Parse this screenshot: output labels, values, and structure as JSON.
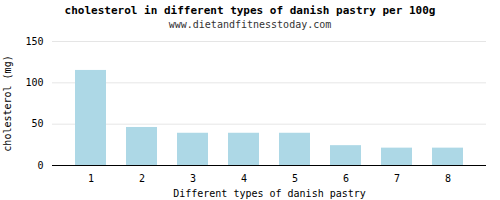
{
  "chart_data": {
    "type": "bar",
    "title": "cholesterol in different types of danish pastry per 100g",
    "subtitle": "www.dietandfitnesstoday.com",
    "xlabel": "Different types of danish pastry",
    "ylabel": "cholesterol (mg)",
    "categories": [
      1,
      2,
      3,
      4,
      5,
      6,
      7,
      8
    ],
    "values": [
      115,
      46,
      39,
      39,
      39,
      24,
      21,
      21
    ],
    "color": "#add8e6",
    "ylim": [
      0,
      150
    ],
    "yticks": [
      0,
      50,
      100,
      150
    ],
    "grid": true
  }
}
